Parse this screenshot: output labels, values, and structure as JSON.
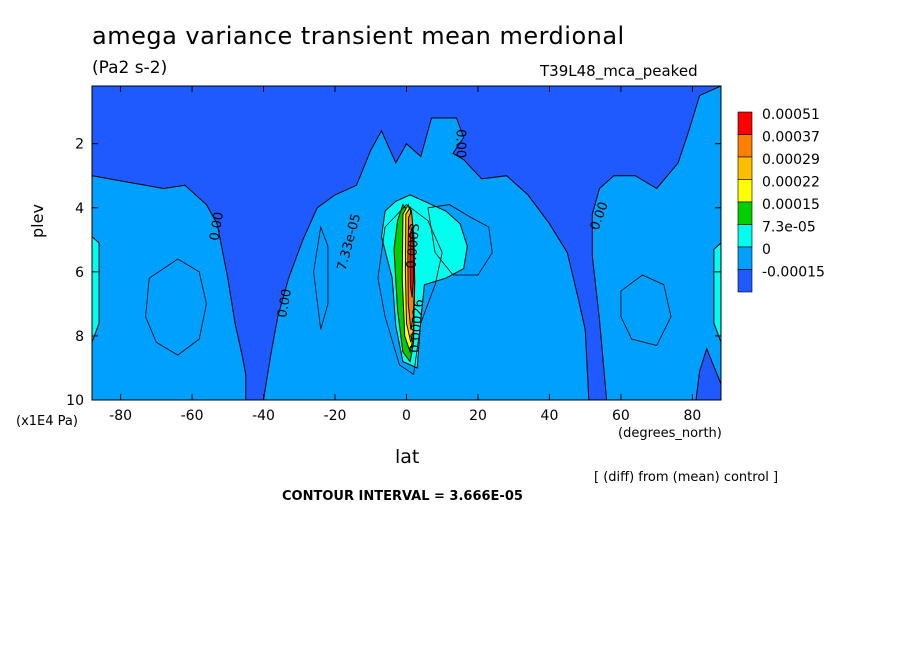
{
  "chart_data": {
    "type": "heatmap",
    "title": "amega variance transient mean merdional",
    "subtitle": "(Pa2 s-2)",
    "run_label": "T39L48_mca_peaked",
    "ylabel": "plev",
    "y_unit": "(x1E4 Pa)",
    "xlabel": "lat",
    "x_unit": "(degrees_north)",
    "note": "[ (diff) from (mean) control ]",
    "contour_interval": "CONTOUR INTERVAL = 3.666E-05",
    "xlim": [
      -88,
      88
    ],
    "ylim": [
      10,
      0.2
    ],
    "x_ticks": [
      -80,
      -60,
      -40,
      -20,
      0,
      20,
      40,
      60,
      80
    ],
    "x_tick_labels": [
      "-80",
      "-60",
      "-40",
      "-20",
      "0",
      "20",
      "40",
      "60",
      "80"
    ],
    "y_ticks": [
      2,
      4,
      6,
      8,
      10
    ],
    "y_tick_labels": [
      "2",
      "4",
      "6",
      "8",
      "10"
    ],
    "colorbar": {
      "levels": [
        "0.00051",
        "0.00037",
        "0.00029",
        "0.00022",
        "0.00015",
        "7.3e-05",
        "0",
        "-0.00015"
      ],
      "colors": [
        "#ff0000",
        "#ff7f00",
        "#ffbf00",
        "#ffff00",
        "#00d000",
        "#00ffee",
        "#00a0ff",
        "#1e5aff"
      ]
    },
    "contour_labels": [
      {
        "text": "0.00",
        "lat": -52,
        "plev": 4.6,
        "rotate": -80
      },
      {
        "text": "0.00",
        "lat": -33,
        "plev": 7.0,
        "rotate": -80
      },
      {
        "text": "7.33e-05",
        "lat": -15,
        "plev": 5.1,
        "rotate": -75
      },
      {
        "text": "0.00",
        "lat": 14,
        "plev": 2.0,
        "rotate": 90
      },
      {
        "text": "0.00",
        "lat": 55,
        "plev": 4.3,
        "rotate": -70
      },
      {
        "text": "0.0003",
        "lat": 3,
        "plev": 5.2,
        "rotate": -85
      },
      {
        "text": "0.00026",
        "lat": 4,
        "plev": 7.7,
        "rotate": -85
      }
    ],
    "regions": [
      {
        "level_index": 7,
        "points": [
          [
            -88,
            0.2
          ],
          [
            88,
            0.2
          ],
          [
            88,
            10
          ],
          [
            -88,
            10
          ]
        ]
      },
      {
        "level_index": 6,
        "points": [
          [
            -88,
            3.0
          ],
          [
            -78,
            3.2
          ],
          [
            -68,
            3.4
          ],
          [
            -62,
            3.3
          ],
          [
            -56,
            3.9
          ],
          [
            -53,
            4.5
          ],
          [
            -50,
            6.2
          ],
          [
            -48,
            7.6
          ],
          [
            -46,
            8.6
          ],
          [
            -45,
            9.2
          ],
          [
            -45,
            10
          ],
          [
            -88,
            10
          ]
        ]
      },
      {
        "level_index": 6,
        "points": [
          [
            -40,
            10
          ],
          [
            -38,
            8.6
          ],
          [
            -36,
            7.4
          ],
          [
            -33,
            6.2
          ],
          [
            -29,
            5.0
          ],
          [
            -25,
            4.0
          ],
          [
            -20,
            3.6
          ],
          [
            -14,
            3.3
          ],
          [
            -10,
            2.2
          ],
          [
            -7,
            1.6
          ],
          [
            -3,
            2.6
          ],
          [
            0,
            2.0
          ],
          [
            4,
            2.4
          ],
          [
            7,
            1.2
          ],
          [
            14,
            1.2
          ],
          [
            16,
            1.8
          ],
          [
            13,
            2.3
          ],
          [
            16,
            2.5
          ],
          [
            21,
            3.1
          ],
          [
            28,
            3.0
          ],
          [
            34,
            3.6
          ],
          [
            40,
            4.5
          ],
          [
            45,
            5.4
          ],
          [
            48,
            6.8
          ],
          [
            50,
            7.8
          ],
          [
            51,
            10
          ]
        ]
      },
      {
        "level_index": 6,
        "points": [
          [
            56,
            10
          ],
          [
            54,
            7.5
          ],
          [
            52,
            5.5
          ],
          [
            52,
            4.2
          ],
          [
            54,
            3.4
          ],
          [
            58,
            3.0
          ],
          [
            64,
            3.0
          ],
          [
            70,
            3.4
          ],
          [
            76,
            2.6
          ],
          [
            79,
            1.6
          ],
          [
            82,
            0.5
          ],
          [
            88,
            0.2
          ],
          [
            88,
            9.5
          ],
          [
            84,
            8.4
          ],
          [
            82,
            9.1
          ],
          [
            81,
            10
          ]
        ]
      },
      {
        "level_index": 5,
        "points": [
          [
            -7,
            4.9
          ],
          [
            -6,
            4.1
          ],
          [
            -3,
            3.8
          ],
          [
            1,
            3.6
          ],
          [
            5,
            3.8
          ],
          [
            11,
            4.1
          ],
          [
            15,
            4.5
          ],
          [
            17,
            5.2
          ],
          [
            16,
            5.9
          ],
          [
            11,
            6.2
          ],
          [
            5,
            6.4
          ],
          [
            4,
            7.5
          ],
          [
            3,
            9.0
          ],
          [
            -1,
            8.8
          ],
          [
            -3,
            7.7
          ],
          [
            -4,
            6.2
          ]
        ]
      },
      {
        "level_index": 5,
        "points": [
          [
            -88,
            4.9
          ],
          [
            -86,
            5.1
          ],
          [
            -86,
            7.6
          ],
          [
            -88,
            8.2
          ]
        ]
      },
      {
        "level_index": 5,
        "points": [
          [
            88,
            8.2
          ],
          [
            86,
            7.6
          ],
          [
            86,
            5.3
          ],
          [
            88,
            5.1
          ]
        ]
      },
      {
        "level_index": 4,
        "points": [
          [
            -2.5,
            4.4
          ],
          [
            -1,
            3.9
          ],
          [
            1,
            4.2
          ],
          [
            2,
            5.8
          ],
          [
            2,
            8.2
          ],
          [
            1,
            8.8
          ],
          [
            -1,
            8.5
          ],
          [
            -2.5,
            7.2
          ],
          [
            -3.5,
            5.3
          ]
        ]
      },
      {
        "level_index": 3,
        "points": [
          [
            -1.0,
            4.2
          ],
          [
            0.5,
            3.9
          ],
          [
            1.8,
            4.6
          ],
          [
            2.2,
            6.2
          ],
          [
            2.0,
            8.0
          ],
          [
            1.0,
            8.5
          ],
          [
            -0.5,
            8.0
          ],
          [
            -1.2,
            6.2
          ]
        ]
      },
      {
        "level_index": 2,
        "points": [
          [
            -0.2,
            4.2
          ],
          [
            1.0,
            4.0
          ],
          [
            2.0,
            4.8
          ],
          [
            2.3,
            6.4
          ],
          [
            2.0,
            7.8
          ],
          [
            1.2,
            8.2
          ],
          [
            0.0,
            7.6
          ],
          [
            -0.3,
            6.0
          ]
        ]
      },
      {
        "level_index": 1,
        "points": [
          [
            0.6,
            4.3
          ],
          [
            1.4,
            4.1
          ],
          [
            2.1,
            5.0
          ],
          [
            2.3,
            6.3
          ],
          [
            1.9,
            7.4
          ],
          [
            1.2,
            7.8
          ],
          [
            0.5,
            7.0
          ],
          [
            0.4,
            5.6
          ]
        ]
      },
      {
        "level_index": 0,
        "points": [
          [
            1.1,
            4.8
          ],
          [
            1.6,
            4.6
          ],
          [
            2.0,
            5.3
          ],
          [
            2.0,
            6.2
          ],
          [
            1.6,
            6.8
          ],
          [
            1.1,
            6.4
          ],
          [
            1.0,
            5.6
          ]
        ]
      }
    ],
    "contour_lines": [
      [
        [
          -72,
          6.2
        ],
        [
          -64,
          5.6
        ],
        [
          -58,
          6.0
        ],
        [
          -56,
          7.0
        ],
        [
          -58,
          8.1
        ],
        [
          -64,
          8.6
        ],
        [
          -70,
          8.2
        ],
        [
          -73,
          7.4
        ],
        [
          -72,
          6.2
        ]
      ],
      [
        [
          60,
          6.6
        ],
        [
          66,
          6.1
        ],
        [
          72,
          6.4
        ],
        [
          74,
          7.4
        ],
        [
          70,
          8.3
        ],
        [
          63,
          8.1
        ],
        [
          60,
          7.4
        ],
        [
          60,
          6.6
        ]
      ],
      [
        [
          -26,
          6.0
        ],
        [
          -24,
          4.6
        ],
        [
          -22,
          5.2
        ],
        [
          -22,
          7.0
        ],
        [
          -24,
          7.8
        ],
        [
          -26,
          6.0
        ]
      ],
      [
        [
          -8,
          6.2
        ],
        [
          -6,
          4.6
        ],
        [
          0,
          3.9
        ],
        [
          6,
          4.4
        ],
        [
          10,
          5.4
        ],
        [
          8,
          6.4
        ],
        [
          4,
          7.6
        ],
        [
          2,
          9.2
        ],
        [
          -2,
          8.9
        ],
        [
          -6,
          7.4
        ],
        [
          -8,
          6.2
        ]
      ],
      [
        [
          6,
          4.0
        ],
        [
          12,
          3.9
        ],
        [
          18,
          4.3
        ],
        [
          23,
          4.6
        ],
        [
          24,
          5.4
        ],
        [
          20,
          6.1
        ],
        [
          13,
          6.1
        ],
        [
          8,
          5.4
        ],
        [
          6,
          4.0
        ]
      ]
    ]
  }
}
